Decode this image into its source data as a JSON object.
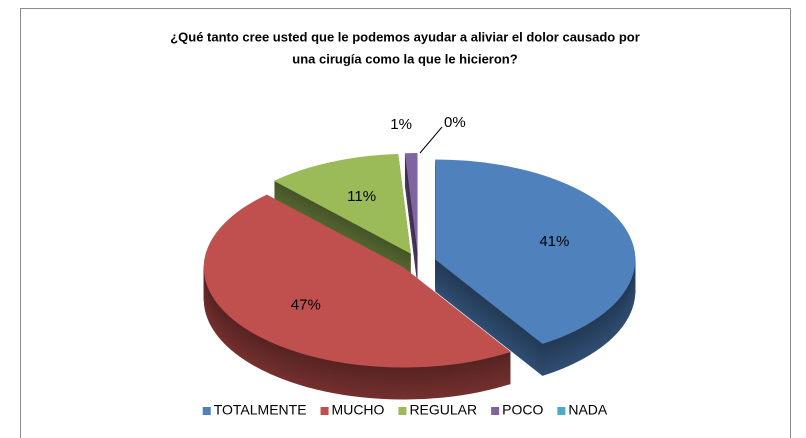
{
  "chart_data": {
    "type": "pie",
    "title": [
      "¿Qué tanto cree usted que le podemos ayudar a aliviar el dolor causado  por",
      "una cirugía como la que le hicieron?"
    ],
    "categories": [
      "TOTALMENTE",
      "MUCHO",
      "REGULAR",
      "POCO",
      "NADA"
    ],
    "values": [
      41,
      47,
      11,
      1,
      0
    ],
    "value_labels": [
      "41%",
      "47%",
      "11%",
      "1%",
      "0%"
    ],
    "colors": [
      "#4f81bd",
      "#c0504d",
      "#9bbb59",
      "#8064a2",
      "#4bacc6"
    ],
    "legend": "bottom"
  }
}
